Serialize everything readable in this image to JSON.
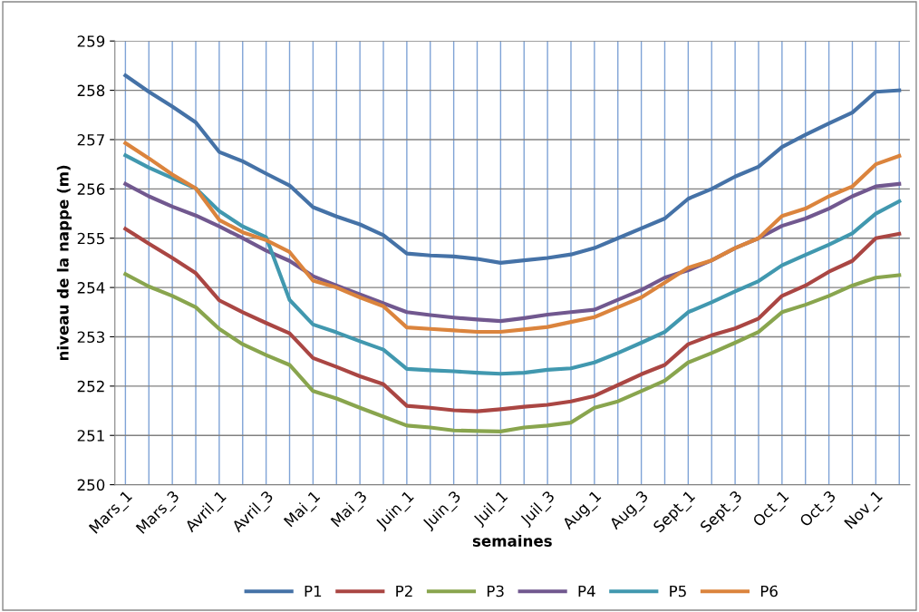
{
  "chart_data": {
    "type": "line",
    "xlabel": "semaines",
    "ylabel": "niveau de la nappe (m)",
    "categories": [
      "Mars_1",
      null,
      "Mars_3",
      null,
      "Avril_1",
      null,
      "Avril_3",
      null,
      "Mai_1",
      null,
      "Mai_3",
      null,
      "Juin_1",
      null,
      "Juin_3",
      null,
      "Juil_1",
      null,
      "Juil_3",
      null,
      "Aug_1",
      null,
      "Aug_3",
      null,
      "Sept_1",
      null,
      "Sept_3",
      null,
      "Oct_1",
      null,
      "Oct_3",
      null,
      "Nov_1",
      null
    ],
    "ylim": [
      250,
      259
    ],
    "yticks": [
      250,
      251,
      252,
      253,
      254,
      255,
      256,
      257,
      258,
      259
    ],
    "grid": true,
    "legend": "bottom",
    "series": [
      {
        "name": "P1",
        "color": "#4572a7",
        "values": [
          258.3,
          257.97,
          257.67,
          257.35,
          256.75,
          256.56,
          256.31,
          256.07,
          255.63,
          255.44,
          255.28,
          255.06,
          254.69,
          254.65,
          254.63,
          254.58,
          254.5,
          254.55,
          254.6,
          254.67,
          254.8,
          255.0,
          255.2,
          255.4,
          255.8,
          256.0,
          256.25,
          256.45,
          256.85,
          257.1,
          257.33,
          257.55,
          257.97,
          258.0
        ]
      },
      {
        "name": "P2",
        "color": "#aa4643",
        "values": [
          255.19,
          254.89,
          254.6,
          254.29,
          253.74,
          253.5,
          253.28,
          253.07,
          252.57,
          252.39,
          252.2,
          252.04,
          251.6,
          251.56,
          251.51,
          251.49,
          251.53,
          251.58,
          251.62,
          251.69,
          251.8,
          252.02,
          252.24,
          252.43,
          252.85,
          253.03,
          253.17,
          253.37,
          253.83,
          254.04,
          254.32,
          254.54,
          255.0,
          255.09
        ]
      },
      {
        "name": "P3",
        "color": "#89a54e",
        "values": [
          254.27,
          254.02,
          253.83,
          253.6,
          253.16,
          252.85,
          252.63,
          252.43,
          251.9,
          251.75,
          251.56,
          251.38,
          251.2,
          251.16,
          251.1,
          251.09,
          251.08,
          251.16,
          251.2,
          251.26,
          251.56,
          251.69,
          251.9,
          252.11,
          252.48,
          252.67,
          252.88,
          253.1,
          253.5,
          253.65,
          253.83,
          254.04,
          254.2,
          254.25
        ]
      },
      {
        "name": "P4",
        "color": "#71588f",
        "values": [
          256.1,
          255.85,
          255.64,
          255.46,
          255.24,
          255.0,
          254.75,
          254.54,
          254.23,
          254.04,
          253.86,
          253.68,
          253.5,
          253.44,
          253.39,
          253.35,
          253.32,
          253.38,
          253.45,
          253.5,
          253.55,
          253.75,
          253.95,
          254.2,
          254.35,
          254.55,
          254.8,
          255.0,
          255.25,
          255.4,
          255.6,
          255.85,
          256.05,
          256.1
        ]
      },
      {
        "name": "P5",
        "color": "#4198af",
        "values": [
          256.68,
          256.43,
          256.22,
          256.01,
          255.55,
          255.24,
          255.02,
          253.75,
          253.25,
          253.09,
          252.91,
          252.74,
          252.35,
          252.32,
          252.3,
          252.27,
          252.25,
          252.27,
          252.33,
          252.36,
          252.48,
          252.67,
          252.88,
          253.1,
          253.5,
          253.7,
          253.92,
          254.13,
          254.45,
          254.66,
          254.87,
          255.1,
          255.5,
          255.75
        ]
      },
      {
        "name": "P6",
        "color": "#db843d",
        "values": [
          256.93,
          256.62,
          256.29,
          256.01,
          255.37,
          255.12,
          254.96,
          254.72,
          254.14,
          254.0,
          253.8,
          253.62,
          253.19,
          253.16,
          253.13,
          253.1,
          253.1,
          253.15,
          253.2,
          253.3,
          253.4,
          253.6,
          253.8,
          254.1,
          254.4,
          254.55,
          254.8,
          255.0,
          255.45,
          255.6,
          255.85,
          256.05,
          256.5,
          256.67
        ]
      }
    ]
  }
}
